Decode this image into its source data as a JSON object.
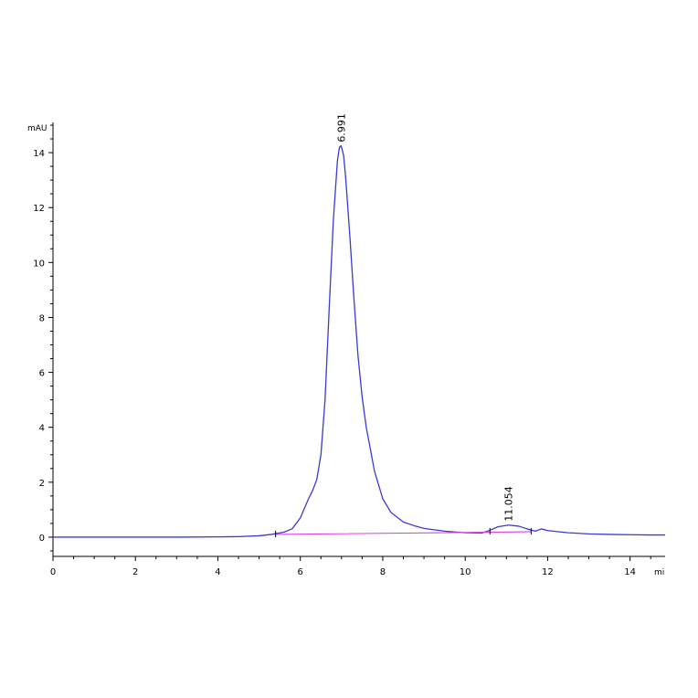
{
  "chart_data": {
    "type": "line",
    "title": "",
    "xlabel": "mi",
    "ylabel": "mAU",
    "xlim": [
      0,
      14.85
    ],
    "ylim": [
      -0.7,
      15.1
    ],
    "x_ticks": [
      0,
      2,
      4,
      6,
      8,
      10,
      12,
      14
    ],
    "x_tick_labels": [
      "0",
      "2",
      "4",
      "6",
      "8",
      "10",
      "12",
      "14"
    ],
    "y_ticks": [
      0,
      2,
      4,
      6,
      8,
      10,
      12,
      14
    ],
    "y_tick_labels": [
      "0",
      "2",
      "4",
      "6",
      "8",
      "10",
      "12",
      "14"
    ],
    "grid": false,
    "series": [
      {
        "color": "#3a3ad6",
        "x": [
          0,
          1,
          2,
          3,
          4,
          4.5,
          5,
          5.3,
          5.6,
          5.8,
          6.0,
          6.2,
          6.3,
          6.4,
          6.5,
          6.6,
          6.7,
          6.8,
          6.9,
          6.95,
          6.991,
          7.05,
          7.1,
          7.2,
          7.3,
          7.4,
          7.5,
          7.6,
          7.8,
          8.0,
          8.2,
          8.5,
          8.8,
          9.0,
          9.5,
          10.0,
          10.4,
          10.6,
          10.8,
          11.054,
          11.3,
          11.5,
          11.7,
          11.85,
          12.0,
          12.5,
          13.0,
          13.5,
          14.0,
          14.5,
          14.85
        ],
        "y": [
          0,
          0,
          0,
          0,
          0.01,
          0.02,
          0.05,
          0.1,
          0.18,
          0.3,
          0.7,
          1.4,
          1.7,
          2.1,
          3.0,
          5.0,
          8.3,
          11.5,
          13.7,
          14.2,
          14.25,
          13.9,
          13.1,
          11.0,
          8.7,
          6.6,
          5.1,
          4.0,
          2.4,
          1.4,
          0.9,
          0.55,
          0.4,
          0.32,
          0.22,
          0.16,
          0.15,
          0.25,
          0.38,
          0.44,
          0.4,
          0.3,
          0.22,
          0.3,
          0.24,
          0.16,
          0.12,
          0.1,
          0.09,
          0.08,
          0.08
        ]
      },
      {
        "color": "#e040e0",
        "x": [
          5.4,
          10.6,
          11.6
        ],
        "y": [
          0.1,
          0.18,
          0.2
        ]
      }
    ],
    "annotations": [
      {
        "x": 6.991,
        "y": 14.25,
        "text": "6.991"
      },
      {
        "x": 11.054,
        "y": 0.44,
        "text": "11.054"
      }
    ]
  }
}
